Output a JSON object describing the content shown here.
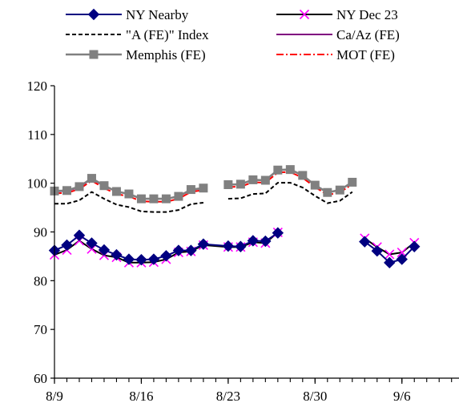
{
  "chart_data": {
    "type": "line",
    "title": "",
    "xlabel": "",
    "ylabel": "",
    "ylim": [
      60,
      120
    ],
    "yticks": [
      60,
      70,
      80,
      90,
      100,
      110,
      120
    ],
    "xticks": [
      {
        "day": 0,
        "label": "8/9"
      },
      {
        "day": 7,
        "label": "8/16"
      },
      {
        "day": 14,
        "label": "8/23"
      },
      {
        "day": 21,
        "label": "8/30"
      },
      {
        "day": 28,
        "label": "9/6"
      }
    ],
    "xlim": [
      0,
      32.6
    ],
    "minor_tick_step": 1,
    "grid": false,
    "legend_position": "top",
    "series": [
      {
        "name": "NY Nearby",
        "color": "#000080",
        "dash": "",
        "marker": "diamond",
        "points": [
          [
            0,
            86.2
          ],
          [
            1,
            87.3
          ],
          [
            2,
            89.3
          ],
          [
            3,
            87.7
          ],
          [
            4,
            86.3
          ],
          [
            5,
            85.3
          ],
          [
            6,
            84.4
          ],
          [
            7,
            84.3
          ],
          [
            8,
            84.4
          ],
          [
            9,
            85.1
          ],
          [
            10,
            86.2
          ],
          [
            11,
            86.2
          ],
          [
            12,
            87.5
          ],
          [
            14,
            87.1
          ],
          [
            15,
            87.0
          ],
          [
            16,
            88.2
          ],
          [
            17,
            88.1
          ],
          [
            18,
            89.8
          ],
          null,
          [
            25,
            88.0
          ],
          [
            26,
            86.1
          ],
          [
            27,
            83.7
          ],
          [
            28,
            84.4
          ],
          [
            29,
            87.0
          ]
        ]
      },
      {
        "name": "NY Dec 23",
        "color": "#000000",
        "dash": "",
        "marker": "cross",
        "markerColor": "#ff00ff",
        "points": [
          [
            0,
            85.3
          ],
          [
            1,
            86.3
          ],
          [
            2,
            88.2
          ],
          [
            3,
            86.5
          ],
          [
            4,
            85.2
          ],
          [
            5,
            84.8
          ],
          [
            6,
            83.7
          ],
          [
            7,
            83.7
          ],
          [
            8,
            83.8
          ],
          [
            9,
            84.4
          ],
          [
            10,
            85.8
          ],
          [
            11,
            86.0
          ],
          [
            12,
            87.3
          ],
          [
            14,
            86.9
          ],
          [
            15,
            86.9
          ],
          [
            16,
            87.9
          ],
          [
            17,
            87.7
          ],
          [
            18,
            89.9
          ],
          null,
          [
            25,
            88.7
          ],
          [
            26,
            86.9
          ],
          [
            27,
            85.4
          ],
          [
            28,
            85.8
          ],
          [
            29,
            87.8
          ]
        ]
      },
      {
        "name": "\"A (FE)\" Index",
        "color": "#000000",
        "dash": "5,3",
        "marker": "none",
        "points": [
          [
            0,
            95.8
          ],
          [
            1,
            95.8
          ],
          [
            2,
            96.5
          ],
          [
            3,
            98.2
          ],
          [
            4,
            96.8
          ],
          [
            5,
            95.6
          ],
          [
            6,
            95.1
          ],
          [
            7,
            94.2
          ],
          [
            8,
            94.1
          ],
          [
            9,
            94.1
          ],
          [
            10,
            94.5
          ],
          [
            11,
            95.7
          ],
          [
            12,
            96.0
          ],
          null,
          [
            14,
            96.8
          ],
          [
            15,
            96.9
          ],
          [
            16,
            97.8
          ],
          [
            17,
            97.9
          ],
          [
            18,
            100.1
          ],
          [
            19,
            100.1
          ],
          [
            20,
            99.1
          ],
          [
            21,
            97.4
          ],
          [
            22,
            95.9
          ],
          [
            23,
            96.4
          ],
          [
            24,
            98.2
          ]
        ]
      },
      {
        "name": "Ca/Az (FE)",
        "color": "#800080",
        "dash": "",
        "marker": "none",
        "points": [
          [
            0,
            98.3
          ],
          [
            1,
            98.4
          ],
          [
            2,
            99.2
          ],
          [
            3,
            100.9
          ],
          [
            4,
            99.4
          ],
          [
            5,
            98.3
          ],
          [
            6,
            97.8
          ],
          [
            7,
            96.8
          ],
          [
            8,
            96.8
          ],
          [
            9,
            96.8
          ],
          [
            10,
            97.3
          ],
          [
            11,
            98.6
          ],
          [
            12,
            99.0
          ],
          null,
          [
            14,
            99.7
          ],
          [
            15,
            99.8
          ],
          [
            16,
            100.7
          ],
          [
            17,
            100.6
          ],
          [
            18,
            102.7
          ],
          [
            19,
            102.8
          ],
          [
            20,
            101.6
          ],
          [
            21,
            99.6
          ],
          [
            22,
            98.1
          ],
          [
            23,
            98.6
          ],
          [
            24,
            100.2
          ]
        ]
      },
      {
        "name": "Memphis (FE)",
        "color": "#808080",
        "dash": "",
        "marker": "square",
        "points": [
          [
            0,
            98.4
          ],
          [
            1,
            98.5
          ],
          [
            2,
            99.3
          ],
          [
            3,
            101.0
          ],
          [
            4,
            99.5
          ],
          [
            5,
            98.3
          ],
          [
            6,
            97.8
          ],
          [
            7,
            96.8
          ],
          [
            8,
            96.8
          ],
          [
            9,
            96.8
          ],
          [
            10,
            97.3
          ],
          [
            11,
            98.7
          ],
          [
            12,
            99.0
          ],
          null,
          [
            14,
            99.7
          ],
          [
            15,
            99.8
          ],
          [
            16,
            100.7
          ],
          [
            17,
            100.6
          ],
          [
            18,
            102.7
          ],
          [
            19,
            102.8
          ],
          [
            20,
            101.6
          ],
          [
            21,
            99.6
          ],
          [
            22,
            98.1
          ],
          [
            23,
            98.6
          ],
          [
            24,
            100.2
          ]
        ]
      },
      {
        "name": "MOT (FE)",
        "color": "#ff0000",
        "dash": "9,3,2,3",
        "marker": "none",
        "points": [
          [
            0,
            97.9
          ],
          [
            1,
            98.0
          ],
          [
            2,
            98.8
          ],
          [
            3,
            100.5
          ],
          [
            4,
            99.0
          ],
          [
            5,
            97.8
          ],
          [
            6,
            97.3
          ],
          [
            7,
            96.3
          ],
          [
            8,
            96.2
          ],
          [
            9,
            96.2
          ],
          [
            10,
            96.8
          ],
          [
            11,
            98.2
          ],
          [
            12,
            98.6
          ],
          null,
          [
            14,
            99.2
          ],
          [
            15,
            99.3
          ],
          [
            16,
            100.2
          ],
          [
            17,
            100.1
          ],
          [
            18,
            102.2
          ],
          [
            19,
            102.3
          ],
          [
            20,
            101.1
          ],
          [
            21,
            99.2
          ],
          [
            22,
            97.6
          ],
          [
            23,
            98.1
          ],
          [
            24,
            99.8
          ]
        ]
      }
    ]
  }
}
